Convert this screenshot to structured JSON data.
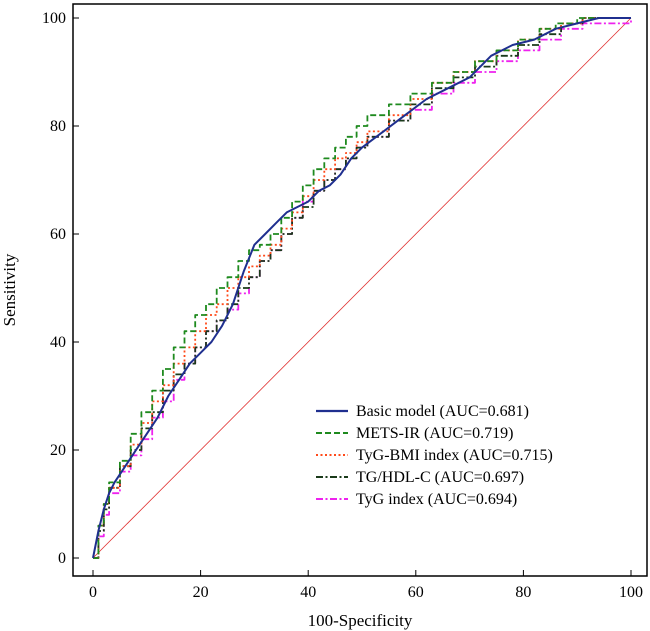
{
  "chart_data": {
    "type": "line",
    "title": "",
    "xlabel": "100-Specificity",
    "ylabel": "Sensitivity",
    "xlim": [
      0,
      100
    ],
    "ylim": [
      0,
      100
    ],
    "xticks": [
      "0",
      "20",
      "40",
      "60",
      "80",
      "100"
    ],
    "yticks": [
      "0",
      "20",
      "40",
      "60",
      "80",
      "100"
    ],
    "legend_position": "bottom-right",
    "reference_line": {
      "name": "chance line",
      "color": "#e03030",
      "x": [
        0,
        100
      ],
      "y": [
        0,
        100
      ]
    },
    "series": [
      {
        "name": "Basic model",
        "legend": "Basic model (AUC=0.681)",
        "color": "#1f2f8f",
        "dash": "solid",
        "x": [
          0,
          1,
          2,
          3,
          4,
          6,
          8,
          10,
          12,
          14,
          16,
          18,
          20,
          22,
          24,
          26,
          28,
          30,
          32,
          34,
          36,
          38,
          40,
          42,
          44,
          46,
          48,
          50,
          54,
          58,
          62,
          66,
          70,
          72,
          74,
          78,
          82,
          86,
          90,
          94,
          100
        ],
        "y": [
          0,
          5,
          9,
          12,
          14,
          17,
          20,
          23,
          26,
          30,
          33,
          36,
          38,
          40,
          43,
          47,
          53,
          58,
          60,
          62,
          64,
          65,
          66,
          68,
          69,
          71,
          74,
          76,
          79,
          82,
          85,
          87,
          89,
          91,
          93,
          95,
          96,
          98,
          99,
          100,
          100
        ]
      },
      {
        "name": "METS-IR",
        "legend": "METS-IR (AUC=0.719)",
        "color": "#1e8a1e",
        "dash": "6,3",
        "x": [
          0,
          1,
          2,
          3,
          5,
          7,
          9,
          11,
          13,
          15,
          17,
          19,
          21,
          23,
          25,
          27,
          29,
          31,
          33,
          35,
          37,
          39,
          41,
          43,
          45,
          47,
          49,
          51,
          55,
          59,
          63,
          67,
          71,
          75,
          79,
          83,
          86,
          90,
          100
        ],
        "y": [
          0,
          6,
          10,
          14,
          18,
          23,
          27,
          31,
          35,
          39,
          42,
          45,
          47,
          50,
          52,
          55,
          57,
          58,
          60,
          63,
          66,
          69,
          72,
          74,
          76,
          78,
          80,
          82,
          84,
          86,
          88,
          90,
          92,
          94,
          96,
          98,
          99,
          100,
          100
        ]
      },
      {
        "name": "TyG-BMI index",
        "legend": "TyG-BMI index (AUC=0.715)",
        "color": "#ff4a1a",
        "dash": "2,2.5",
        "x": [
          0,
          1,
          2,
          3,
          5,
          7,
          9,
          11,
          13,
          15,
          17,
          19,
          21,
          23,
          25,
          27,
          29,
          31,
          33,
          35,
          37,
          39,
          41,
          43,
          45,
          47,
          49,
          51,
          55,
          59,
          63,
          67,
          71,
          75,
          79,
          83,
          87,
          91,
          100
        ],
        "y": [
          0,
          6,
          10,
          13,
          17,
          21,
          25,
          29,
          32,
          36,
          39,
          42,
          45,
          47,
          50,
          52,
          54,
          56,
          58,
          61,
          64,
          67,
          70,
          72,
          74,
          75,
          77,
          79,
          82,
          85,
          88,
          90,
          92,
          94,
          96,
          98,
          99,
          100,
          100
        ]
      },
      {
        "name": "TG/HDL-C",
        "legend": "TG/HDL-C (AUC=0.697)",
        "color": "#1a3a1a",
        "dash": "7,2.5,2,2.5",
        "x": [
          0,
          1,
          2,
          3,
          5,
          7,
          9,
          11,
          13,
          15,
          17,
          19,
          21,
          23,
          25,
          27,
          29,
          31,
          33,
          35,
          37,
          39,
          41,
          43,
          45,
          47,
          49,
          51,
          55,
          59,
          63,
          67,
          71,
          75,
          79,
          83,
          87,
          91,
          100
        ],
        "y": [
          0,
          5,
          9,
          13,
          17,
          20,
          24,
          27,
          31,
          34,
          36,
          39,
          42,
          44,
          47,
          50,
          52,
          55,
          57,
          60,
          63,
          65,
          68,
          70,
          72,
          74,
          76,
          78,
          81,
          84,
          87,
          89,
          91,
          93,
          95,
          97,
          99,
          100,
          100
        ]
      },
      {
        "name": "TyG index",
        "legend": "TyG index (AUC=0.694)",
        "color": "#ee22ee",
        "dash": "7,2.5,2,2.5",
        "x": [
          0,
          1,
          2,
          3,
          5,
          7,
          9,
          11,
          13,
          15,
          17,
          19,
          21,
          23,
          25,
          27,
          29,
          31,
          33,
          35,
          37,
          39,
          41,
          43,
          45,
          47,
          49,
          51,
          55,
          59,
          63,
          67,
          71,
          75,
          79,
          83,
          87,
          91,
          100
        ],
        "y": [
          0,
          4,
          8,
          12,
          16,
          19,
          22,
          26,
          29,
          33,
          36,
          39,
          42,
          44,
          46,
          49,
          52,
          55,
          57,
          60,
          63,
          66,
          68,
          70,
          72,
          74,
          76,
          78,
          81,
          83,
          86,
          88,
          90,
          92,
          94,
          96,
          98,
          99,
          100
        ]
      }
    ]
  }
}
